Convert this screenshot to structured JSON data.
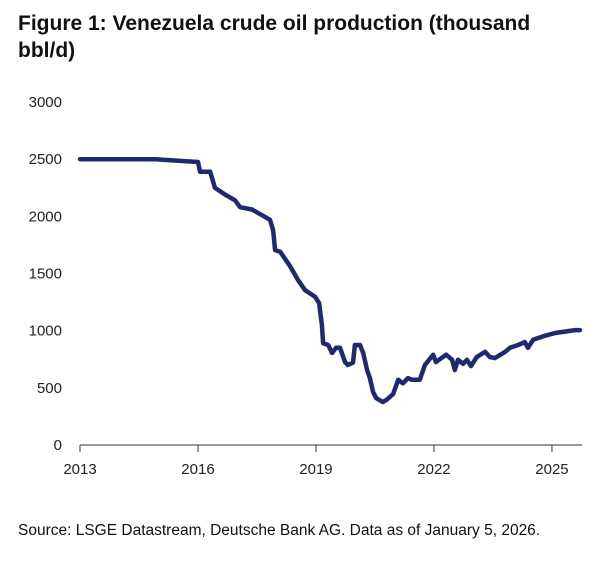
{
  "title": "Figure 1: Venezuela crude oil production (thousand bbl/d)",
  "source": "Source: LSGE Datastream, Deutsche Bank AG. Data as of January 5, 2026.",
  "chart_data": {
    "type": "line",
    "title": "Figure 1: Venezuela crude oil production (thousand bbl/d)",
    "xlabel": "",
    "ylabel": "",
    "xlim": [
      2013,
      2025.75
    ],
    "ylim": [
      0,
      3000
    ],
    "x_ticks": [
      "2013",
      "2016",
      "2019",
      "2022",
      "2025"
    ],
    "y_ticks": [
      "0",
      "500",
      "1000",
      "1500",
      "2000",
      "2500",
      "3000"
    ],
    "grid": false,
    "line_color": "#1f2a6e",
    "series": [
      {
        "x": [
          2013.0,
          2014.91,
          2016.0,
          2016.05,
          2016.31,
          2016.43,
          2016.69,
          2016.94,
          2017.07,
          2017.37,
          2017.63,
          2017.83,
          2017.91,
          2017.96,
          2018.09,
          2018.34,
          2018.54,
          2018.72,
          2018.98,
          2019.08,
          2019.15,
          2019.18,
          2019.31,
          2019.41,
          2019.51,
          2019.61,
          2019.74,
          2019.81,
          2019.94,
          2019.99,
          2020.12,
          2020.2,
          2020.3,
          2020.37,
          2020.45,
          2020.53,
          2020.7,
          2020.81,
          2020.96,
          2021.09,
          2021.21,
          2021.34,
          2021.44,
          2021.64,
          2021.77,
          2021.98,
          2022.05,
          2022.31,
          2022.46,
          2022.53,
          2022.61,
          2022.74,
          2022.84,
          2022.94,
          2023.09,
          2023.3,
          2023.42,
          2023.55,
          2023.81,
          2023.93,
          2024.14,
          2024.31,
          2024.39,
          2024.52,
          2024.82,
          2025.08,
          2025.59,
          2025.71
        ],
        "values": [
          2500,
          2500,
          2475,
          2390,
          2390,
          2250,
          2190,
          2140,
          2080,
          2060,
          2010,
          1970,
          1880,
          1705,
          1690,
          1565,
          1445,
          1355,
          1295,
          1240,
          1050,
          890,
          875,
          805,
          850,
          850,
          725,
          700,
          720,
          875,
          875,
          805,
          655,
          585,
          465,
          410,
          375,
          400,
          445,
          570,
          540,
          585,
          570,
          570,
          700,
          790,
          725,
          790,
          745,
          655,
          745,
          710,
          745,
          690,
          770,
          815,
          770,
          760,
          815,
          850,
          875,
          900,
          850,
          920,
          955,
          980,
          1005,
          1005
        ]
      }
    ]
  }
}
